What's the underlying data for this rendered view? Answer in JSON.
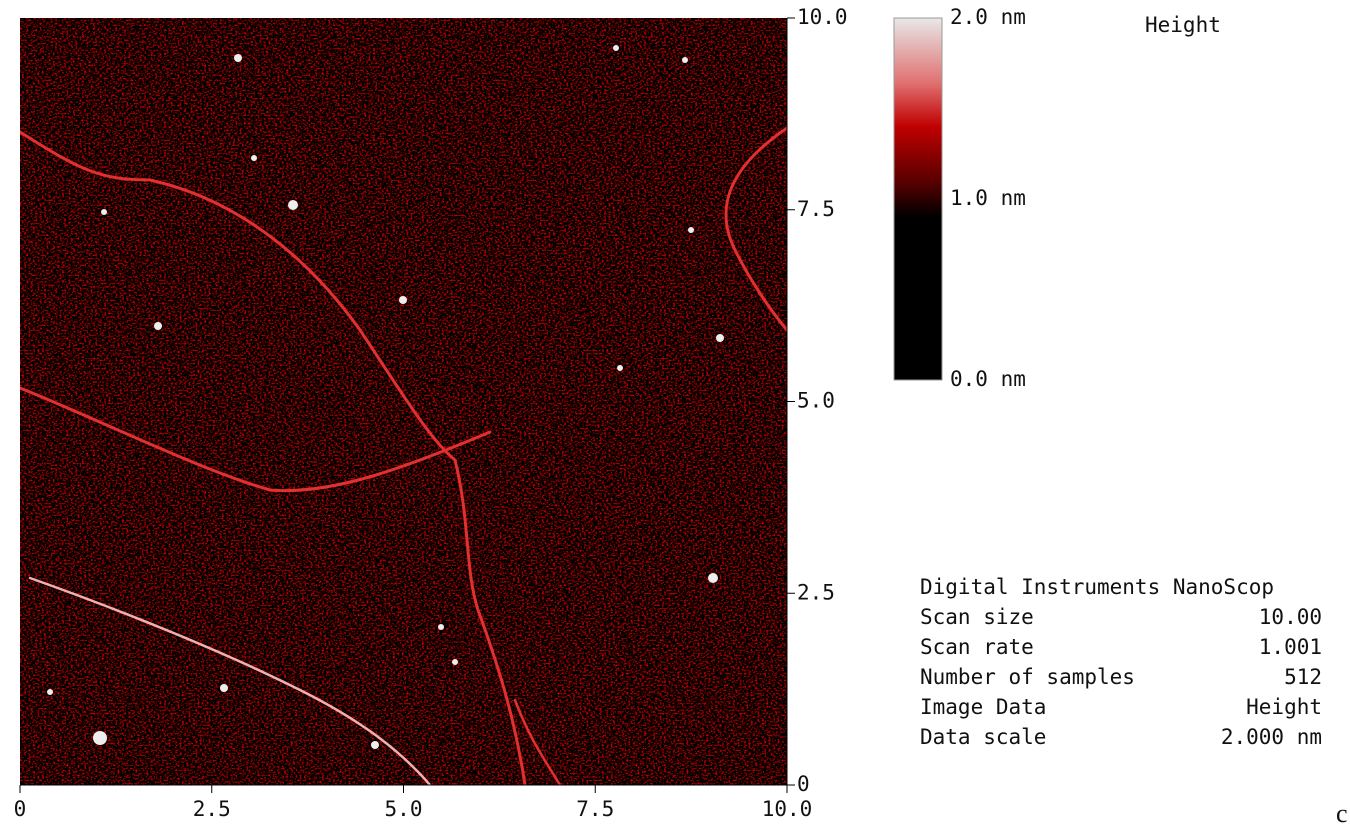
{
  "axes": {
    "x_ticks": [
      "0",
      "2.5",
      "5.0",
      "7.5",
      "10.0"
    ],
    "y_ticks": [
      "10.0",
      "7.5",
      "5.0",
      "2.5",
      "0"
    ]
  },
  "color_bar": {
    "labels": [
      "2.0 nm",
      "1.0 nm",
      "0.0 nm"
    ]
  },
  "title": "Height",
  "info": {
    "header": "Digital Instruments NanoScop",
    "rows": [
      [
        "Scan size",
        "10.00"
      ],
      [
        "Scan rate",
        "1.001"
      ],
      [
        "Number of samples",
        "512"
      ],
      [
        "Image Data",
        "Height"
      ],
      [
        "Data scale",
        "2.000 nm"
      ]
    ]
  },
  "panel_label": "c"
}
